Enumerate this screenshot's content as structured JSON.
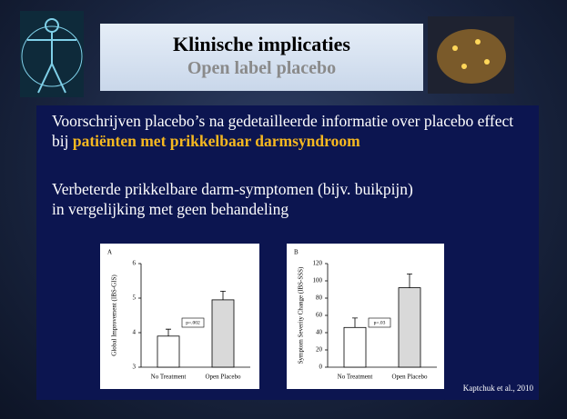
{
  "slide": {
    "title": "Klinische implicaties",
    "subtitle": "Open label placebo",
    "paragraph1": {
      "text": "Voorschrijven placebo’s na gedetailleerde informatie over placebo effect bij ",
      "highlight": "patiënten met prikkelbaar darmsyndroom"
    },
    "paragraph2": [
      "Verbeterde prikkelbare darm-symptomen (bijv. buikpijn)",
      "in vergelijking met geen behandeling"
    ],
    "source": "Kaptchuk et al., 2010"
  },
  "chart_data": [
    {
      "type": "bar",
      "title": "A",
      "y_label": "Global Improvement (IBS-GIS)",
      "categories": [
        "No Treatment",
        "Open Placebo"
      ],
      "values": [
        3.9,
        4.95
      ],
      "errors": [
        0.2,
        0.25
      ],
      "colors": [
        "#ffffff",
        "#d9d9d9"
      ],
      "ylim": [
        3,
        6
      ],
      "yticks": [
        3,
        4,
        5,
        6
      ],
      "annotation": "p=.002"
    },
    {
      "type": "bar",
      "title": "B",
      "y_label": "Symptom Severity Change (IBS-SSS)",
      "categories": [
        "No Treatment",
        "Open Placebo"
      ],
      "values": [
        46,
        92
      ],
      "errors": [
        11,
        16
      ],
      "colors": [
        "#ffffff",
        "#d9d9d9"
      ],
      "ylim": [
        0,
        120
      ],
      "yticks": [
        0,
        20,
        40,
        60,
        80,
        100,
        120
      ],
      "annotation": "p=.03"
    }
  ]
}
